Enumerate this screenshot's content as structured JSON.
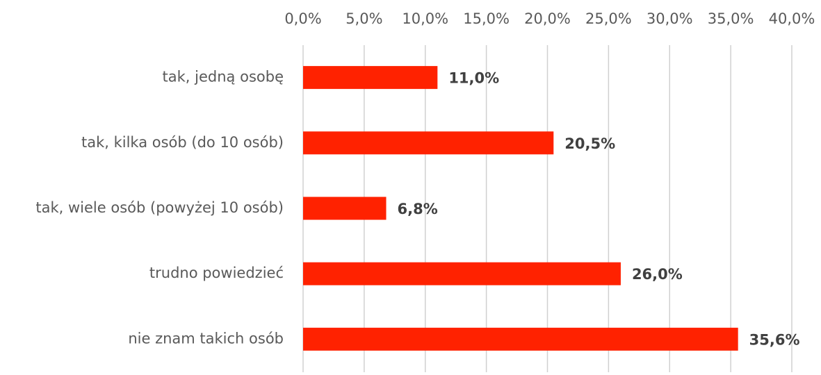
{
  "chart_data": {
    "type": "bar",
    "orientation": "horizontal",
    "categories": [
      "tak, jedną osobę",
      "tak, kilka osób (do 10 osób)",
      "tak, wiele osób (powyżej 10 osób)",
      "trudno powiedzieć",
      "nie znam takich osób"
    ],
    "values": [
      11.0,
      20.5,
      6.8,
      26.0,
      35.6
    ],
    "value_labels": [
      "11,0%",
      "20,5%",
      "6,8%",
      "26,0%",
      "35,6%"
    ],
    "color": "#ff2200",
    "xlim": [
      0,
      40
    ],
    "xticks": [
      {
        "value": 0,
        "label": "0,0%"
      },
      {
        "value": 5,
        "label": "5,0%"
      },
      {
        "value": 10,
        "label": "10,0%"
      },
      {
        "value": 15,
        "label": "15,0%"
      },
      {
        "value": 20,
        "label": "20,0%"
      },
      {
        "value": 25,
        "label": "25,0%"
      },
      {
        "value": 30,
        "label": "30,0%"
      },
      {
        "value": 35,
        "label": "35,0%"
      },
      {
        "value": 40,
        "label": "40,0%"
      }
    ],
    "grid": true
  }
}
